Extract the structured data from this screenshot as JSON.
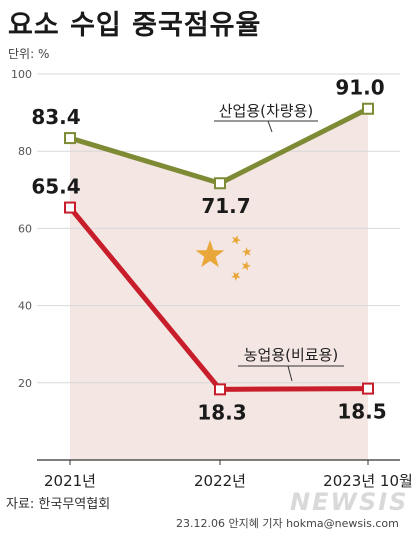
{
  "title": "요소 수입 중국점유율",
  "unit_label": "단위: %",
  "source": "자료: 한국무역협회",
  "credit": "23.12.06 안지혜 기자 hokma@newsis.com",
  "logo_text": "NEWSIS",
  "colors": {
    "background_panel": "#f3e6e3",
    "industrial": "#7f8a34",
    "agricultural": "#c81e2b",
    "star": "#e9a73a",
    "grid": "#d8d8d8"
  },
  "chart_data": {
    "type": "line",
    "title": "요소 수입 중국점유율",
    "ylabel": "",
    "xlabel": "",
    "categories": [
      "2021년",
      "2022년",
      "2023년 10월"
    ],
    "ylim": [
      0,
      100
    ],
    "yticks": [
      20,
      40,
      60,
      80,
      100
    ],
    "grid": true,
    "series": [
      {
        "name": "산업용(차량용)",
        "values": [
          83.4,
          71.7,
          91.0
        ],
        "value_labels": [
          "83.4",
          "71.7",
          "91.0"
        ],
        "color": "#7f8a34"
      },
      {
        "name": "농업용(비료용)",
        "values": [
          65.4,
          18.3,
          18.5
        ],
        "value_labels": [
          "65.4",
          "18.3",
          "18.5"
        ],
        "color": "#c81e2b"
      }
    ]
  }
}
